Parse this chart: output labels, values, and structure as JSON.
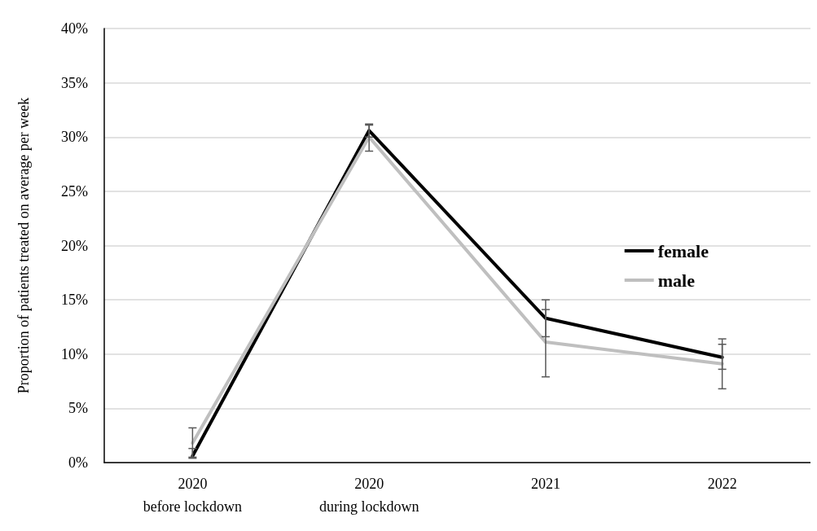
{
  "chart_data": {
    "type": "line",
    "ylabel": "Proportion of patients treated on average per week",
    "categories": [
      "2020\nbefore lockdown",
      "2020\nduring lockdown",
      "2021",
      "2022"
    ],
    "series": [
      {
        "name": "female",
        "color": "#000000",
        "values": [
          0.6,
          30.6,
          13.3,
          9.7
        ],
        "errors": [
          [
            0.4,
            1.3
          ],
          [
            30.0,
            31.2
          ],
          [
            11.6,
            15.0
          ],
          [
            8.6,
            11.4
          ]
        ]
      },
      {
        "name": "male",
        "color": "#bfbfbf",
        "values": [
          1.8,
          30.0,
          11.1,
          9.1
        ],
        "errors": [
          [
            0.5,
            3.2
          ],
          [
            28.7,
            31.1
          ],
          [
            7.9,
            14.1
          ],
          [
            6.8,
            10.9
          ]
        ]
      }
    ],
    "ylim": [
      0,
      40
    ],
    "yticks": [
      {
        "value": 0,
        "label": "0%"
      },
      {
        "value": 5,
        "label": "5%"
      },
      {
        "value": 10,
        "label": "10%"
      },
      {
        "value": 15,
        "label": "15%"
      },
      {
        "value": 20,
        "label": "20%"
      },
      {
        "value": 25,
        "label": "25%"
      },
      {
        "value": 30,
        "label": "30%"
      },
      {
        "value": 35,
        "label": "35%"
      },
      {
        "value": 40,
        "label": "40%"
      }
    ],
    "grid": "y",
    "legend": "right",
    "marker": "none",
    "line_style": "solid"
  }
}
